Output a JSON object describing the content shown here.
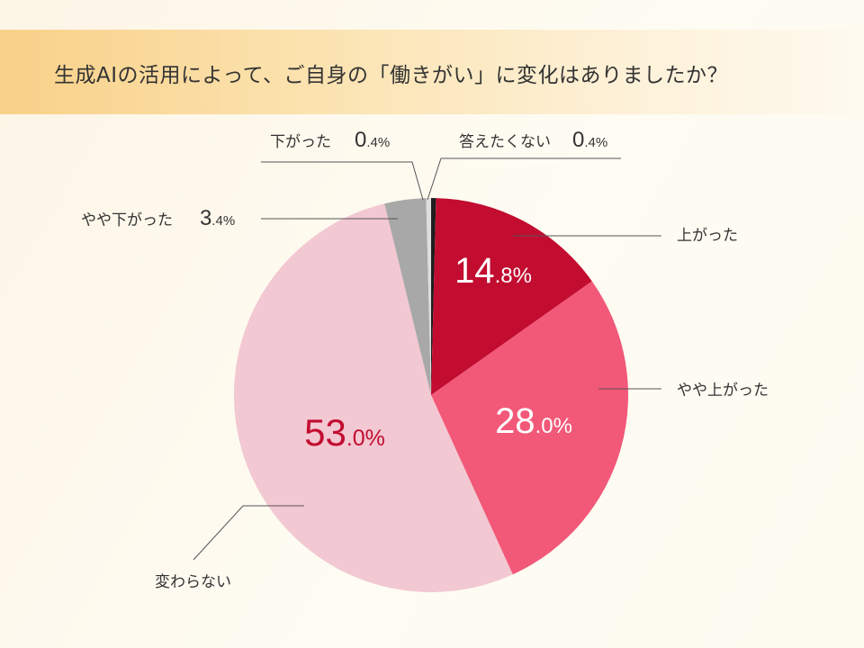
{
  "title": "生成AIの活用によって、ご自身の「働きがい」に変化はありましたか？",
  "colors": {
    "background": "#fdf8ec",
    "title_band_start": "#f9d189",
    "text": "#333333",
    "leader_line": "#555555"
  },
  "chart_data": {
    "type": "pie",
    "title": "生成AIの活用によって、ご自身の「働きがい」に変化はありましたか？",
    "start": "12 o'clock",
    "direction": "clockwise",
    "unit": "%",
    "slices": [
      {
        "label": "答えたくない",
        "value": 0.4,
        "value_label": "0.4",
        "color": "#1e1e1e",
        "label_style": "outside"
      },
      {
        "label": "上がった",
        "value": 14.8,
        "value_label": "14.8",
        "color": "#c20c30",
        "label_style": "inside-light"
      },
      {
        "label": "やや上がった",
        "value": 28.0,
        "value_label": "28.0",
        "color": "#f25878",
        "label_style": "inside-light"
      },
      {
        "label": "変わらない",
        "value": 53.0,
        "value_label": "53.0",
        "color": "#f2c8d2",
        "label_style": "inside-red"
      },
      {
        "label": "やや下がった",
        "value": 3.4,
        "value_label": "3.4",
        "color": "#a8a8a8",
        "label_style": "outside"
      },
      {
        "label": "下がった",
        "value": 0.4,
        "value_label": "0.4",
        "color": "#dedede",
        "label_style": "outside"
      }
    ]
  }
}
